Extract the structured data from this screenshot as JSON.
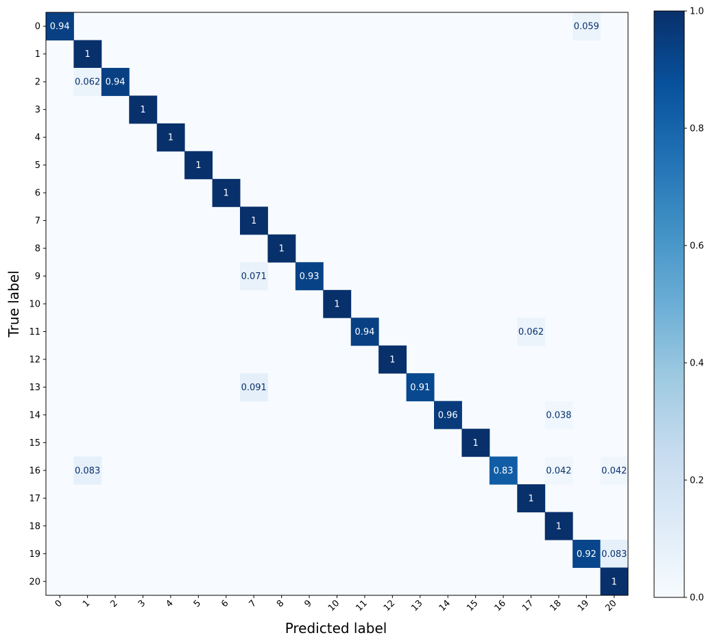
{
  "chart_data": {
    "type": "heatmap",
    "title": "",
    "xlabel": "Predicted label",
    "ylabel": "True label",
    "x_categories": [
      "0",
      "1",
      "2",
      "3",
      "4",
      "5",
      "6",
      "7",
      "8",
      "9",
      "10",
      "11",
      "12",
      "13",
      "14",
      "15",
      "16",
      "17",
      "18",
      "19",
      "20"
    ],
    "y_categories": [
      "0",
      "1",
      "2",
      "3",
      "4",
      "5",
      "6",
      "7",
      "8",
      "9",
      "10",
      "11",
      "12",
      "13",
      "14",
      "15",
      "16",
      "17",
      "18",
      "19",
      "20"
    ],
    "colormap": "Blues",
    "colorbar": {
      "range": [
        0.0,
        1.0
      ],
      "ticks": [
        "0.0",
        "0.2",
        "0.4",
        "0.6",
        "0.8",
        "1.0"
      ]
    },
    "cells": [
      {
        "row": 0,
        "col": 0,
        "value": 0.94,
        "label": "0.94"
      },
      {
        "row": 0,
        "col": 19,
        "value": 0.059,
        "label": "0.059"
      },
      {
        "row": 1,
        "col": 1,
        "value": 1,
        "label": "1"
      },
      {
        "row": 2,
        "col": 1,
        "value": 0.062,
        "label": "0.062"
      },
      {
        "row": 2,
        "col": 2,
        "value": 0.94,
        "label": "0.94"
      },
      {
        "row": 3,
        "col": 3,
        "value": 1,
        "label": "1"
      },
      {
        "row": 4,
        "col": 4,
        "value": 1,
        "label": "1"
      },
      {
        "row": 5,
        "col": 5,
        "value": 1,
        "label": "1"
      },
      {
        "row": 6,
        "col": 6,
        "value": 1,
        "label": "1"
      },
      {
        "row": 7,
        "col": 7,
        "value": 1,
        "label": "1"
      },
      {
        "row": 8,
        "col": 8,
        "value": 1,
        "label": "1"
      },
      {
        "row": 9,
        "col": 7,
        "value": 0.071,
        "label": "0.071"
      },
      {
        "row": 9,
        "col": 9,
        "value": 0.93,
        "label": "0.93"
      },
      {
        "row": 10,
        "col": 10,
        "value": 1,
        "label": "1"
      },
      {
        "row": 11,
        "col": 11,
        "value": 0.94,
        "label": "0.94"
      },
      {
        "row": 11,
        "col": 17,
        "value": 0.062,
        "label": "0.062"
      },
      {
        "row": 12,
        "col": 12,
        "value": 1,
        "label": "1"
      },
      {
        "row": 13,
        "col": 7,
        "value": 0.091,
        "label": "0.091"
      },
      {
        "row": 13,
        "col": 13,
        "value": 0.91,
        "label": "0.91"
      },
      {
        "row": 14,
        "col": 14,
        "value": 0.96,
        "label": "0.96"
      },
      {
        "row": 14,
        "col": 18,
        "value": 0.038,
        "label": "0.038"
      },
      {
        "row": 15,
        "col": 15,
        "value": 1,
        "label": "1"
      },
      {
        "row": 16,
        "col": 1,
        "value": 0.083,
        "label": "0.083"
      },
      {
        "row": 16,
        "col": 16,
        "value": 0.83,
        "label": "0.83"
      },
      {
        "row": 16,
        "col": 18,
        "value": 0.042,
        "label": "0.042"
      },
      {
        "row": 16,
        "col": 20,
        "value": 0.042,
        "label": "0.042"
      },
      {
        "row": 17,
        "col": 17,
        "value": 1,
        "label": "1"
      },
      {
        "row": 18,
        "col": 18,
        "value": 1,
        "label": "1"
      },
      {
        "row": 19,
        "col": 19,
        "value": 0.92,
        "label": "0.92"
      },
      {
        "row": 19,
        "col": 20,
        "value": 0.083,
        "label": "0.083"
      },
      {
        "row": 20,
        "col": 20,
        "value": 1,
        "label": "1"
      }
    ]
  }
}
